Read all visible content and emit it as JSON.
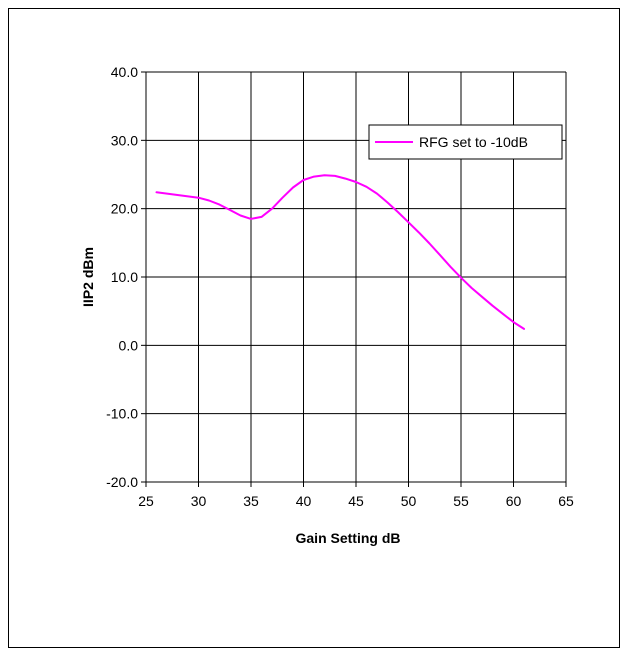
{
  "chart_data": {
    "type": "line",
    "title": "",
    "xlabel": "Gain Setting dB",
    "ylabel": "IIP2 dBm",
    "xlim": [
      25,
      65
    ],
    "ylim": [
      -20,
      40
    ],
    "x_ticks": [
      25,
      30,
      35,
      40,
      45,
      50,
      55,
      60,
      65
    ],
    "y_ticks": [
      -20,
      -10,
      0,
      10,
      20,
      30,
      40
    ],
    "x_tick_labels": [
      "25",
      "30",
      "35",
      "40",
      "45",
      "50",
      "55",
      "60",
      "65"
    ],
    "y_tick_labels": [
      "-20.0",
      "-10.0",
      "0.0",
      "10.0",
      "20.0",
      "30.0",
      "40.0"
    ],
    "grid": true,
    "legend_position": "top-right",
    "series": [
      {
        "name": "RFG set to -10dB",
        "color": "#ff00ff",
        "x": [
          26,
          28,
          30,
          31,
          32,
          33,
          34,
          35,
          36,
          37,
          38,
          39,
          40,
          41,
          42,
          43,
          44,
          45,
          46,
          47,
          48,
          49,
          50,
          51,
          52,
          53,
          54,
          55,
          56,
          57,
          58,
          59,
          60,
          61
        ],
        "y": [
          22.4,
          22.0,
          21.6,
          21.2,
          20.6,
          19.8,
          19.0,
          18.5,
          18.8,
          20.0,
          21.6,
          23.1,
          24.2,
          24.7,
          24.9,
          24.8,
          24.4,
          23.9,
          23.2,
          22.2,
          20.9,
          19.5,
          18.0,
          16.5,
          14.9,
          13.2,
          11.5,
          9.9,
          8.4,
          7.1,
          5.8,
          4.6,
          3.4,
          2.4
        ]
      }
    ]
  }
}
